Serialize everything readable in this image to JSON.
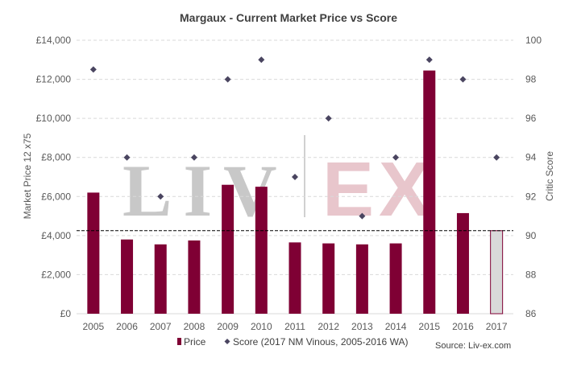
{
  "chart_data": {
    "type": "bar",
    "title": "Margaux - Current Market Price vs Score",
    "categories": [
      "2005",
      "2006",
      "2007",
      "2008",
      "2009",
      "2010",
      "2011",
      "2012",
      "2013",
      "2014",
      "2015",
      "2016",
      "2017"
    ],
    "series": [
      {
        "name": "Price",
        "type": "bar",
        "axis": "left",
        "values": [
          6200,
          3800,
          3550,
          3750,
          6600,
          6500,
          3650,
          3600,
          3550,
          3600,
          12450,
          5150,
          4250
        ],
        "color": "#7f0034",
        "highlight_last": {
          "fill": "#d9d9d9",
          "stroke": "#7f0034"
        }
      },
      {
        "name": "Score (2017 NM Vinous, 2005-2016 WA)",
        "type": "scatter",
        "axis": "right",
        "values": [
          98.5,
          94,
          92,
          94,
          98,
          99,
          93,
          96,
          91,
          94,
          99,
          98,
          94
        ],
        "color": "#4a4560"
      }
    ],
    "reference_line": {
      "value": 4250,
      "axis": "left",
      "style": "dashed"
    },
    "y_left": {
      "label": "Market Price 12 x75",
      "ylim": [
        0,
        14000
      ],
      "ticks": [
        0,
        2000,
        4000,
        6000,
        8000,
        10000,
        12000,
        14000
      ],
      "tick_labels": [
        "£0",
        "£2,000",
        "£4,000",
        "£6,000",
        "£8,000",
        "£10,000",
        "£12,000",
        "£14,000"
      ]
    },
    "y_right": {
      "label": "Critic Score",
      "ylim": [
        86,
        100
      ],
      "ticks": [
        86,
        88,
        90,
        92,
        94,
        96,
        98,
        100
      ],
      "tick_labels": [
        "86",
        "88",
        "90",
        "92",
        "94",
        "96",
        "98",
        "100"
      ]
    },
    "grid": true,
    "legend": "bottom",
    "watermark": {
      "left": "LIV",
      "right": "EX"
    },
    "source": "Source: Liv-ex.com"
  }
}
